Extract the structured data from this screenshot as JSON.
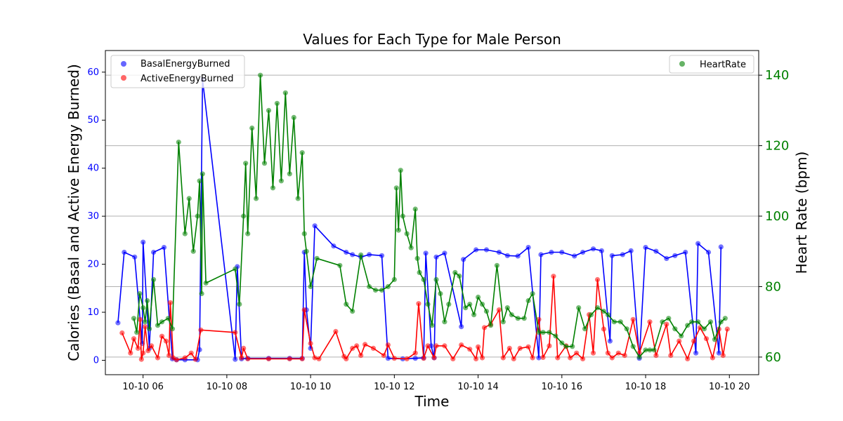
{
  "chart_data": {
    "type": "line",
    "title": "Values for Each Type for Male Person",
    "xlabel": "Time",
    "ylabel_left": "Calories (Basal and Active Energy Burned)",
    "ylabel_right": "Heart Rate (bpm)",
    "xlim": [
      5.1,
      20.7
    ],
    "ylim_left": [
      -3,
      64.5
    ],
    "ylim_right": [
      55,
      147
    ],
    "x_ticks": [
      {
        "label": "10-10 06",
        "hour": 6
      },
      {
        "label": "10-10 08",
        "hour": 8
      },
      {
        "label": "10-10 10",
        "hour": 10
      },
      {
        "label": "10-10 12",
        "hour": 12
      },
      {
        "label": "10-10 14",
        "hour": 14
      },
      {
        "label": "10-10 16",
        "hour": 16
      },
      {
        "label": "10-10 18",
        "hour": 18
      },
      {
        "label": "10-10 20",
        "hour": 20
      }
    ],
    "y_ticks_left": [
      "0",
      "10",
      "20",
      "30",
      "40",
      "50",
      "60"
    ],
    "y_ticks_right": [
      "60",
      "80",
      "100",
      "120",
      "140"
    ],
    "grid": "right-axis horizontal lines",
    "legends": {
      "left": {
        "position": "upper-left",
        "items": [
          "BasalEnergyBurned",
          "ActiveEnergyBurned"
        ]
      },
      "right": {
        "position": "upper-right",
        "items": [
          "HeartRate"
        ]
      }
    },
    "series": [
      {
        "name": "BasalEnergyBurned",
        "axis": "left",
        "color": "#0000ff",
        "points": [
          [
            5.4,
            7.8
          ],
          [
            5.55,
            22.5
          ],
          [
            5.8,
            21.5
          ],
          [
            5.98,
            3.5
          ],
          [
            6.0,
            24.6
          ],
          [
            6.15,
            2.5
          ],
          [
            6.25,
            22.5
          ],
          [
            6.5,
            23.5
          ],
          [
            6.7,
            0.3
          ],
          [
            6.8,
            0.1
          ],
          [
            7.0,
            0.1
          ],
          [
            7.3,
            0.1
          ],
          [
            7.35,
            2.2
          ],
          [
            7.42,
            58.5
          ],
          [
            8.2,
            0.2
          ],
          [
            8.25,
            19.5
          ],
          [
            8.35,
            0.3
          ],
          [
            8.5,
            0.4
          ],
          [
            9.0,
            0.4
          ],
          [
            9.5,
            0.4
          ],
          [
            9.8,
            0.4
          ],
          [
            9.85,
            22.5
          ],
          [
            9.9,
            10.5
          ],
          [
            10.0,
            2.5
          ],
          [
            10.1,
            28.0
          ],
          [
            10.55,
            23.8
          ],
          [
            10.85,
            22.5
          ],
          [
            11.0,
            22.0
          ],
          [
            11.2,
            21.5
          ],
          [
            11.4,
            22.0
          ],
          [
            11.7,
            21.8
          ],
          [
            11.85,
            0.4
          ],
          [
            12.2,
            0.3
          ],
          [
            12.5,
            0.4
          ],
          [
            12.7,
            0.5
          ],
          [
            12.75,
            22.3
          ],
          [
            12.88,
            3.0
          ],
          [
            12.95,
            0.5
          ],
          [
            13.0,
            21.5
          ],
          [
            13.2,
            22.3
          ],
          [
            13.6,
            7.0
          ],
          [
            13.65,
            21.0
          ],
          [
            13.95,
            23.0
          ],
          [
            14.2,
            23.0
          ],
          [
            14.5,
            22.5
          ],
          [
            14.7,
            21.8
          ],
          [
            14.95,
            21.7
          ],
          [
            15.2,
            23.5
          ],
          [
            15.45,
            0.5
          ],
          [
            15.5,
            22.0
          ],
          [
            15.75,
            22.5
          ],
          [
            16.0,
            22.5
          ],
          [
            16.3,
            21.7
          ],
          [
            16.5,
            22.5
          ],
          [
            16.75,
            23.2
          ],
          [
            16.95,
            22.8
          ],
          [
            17.15,
            4.0
          ],
          [
            17.2,
            21.8
          ],
          [
            17.45,
            22.0
          ],
          [
            17.65,
            22.8
          ],
          [
            17.85,
            0.4
          ],
          [
            18.0,
            23.5
          ],
          [
            18.25,
            22.7
          ],
          [
            18.5,
            21.2
          ],
          [
            18.7,
            21.8
          ],
          [
            18.95,
            22.5
          ],
          [
            19.2,
            1.5
          ],
          [
            19.25,
            24.3
          ],
          [
            19.5,
            22.5
          ],
          [
            19.75,
            1.5
          ],
          [
            19.8,
            23.6
          ]
        ]
      },
      {
        "name": "ActiveEnergyBurned",
        "axis": "left",
        "color": "#ff0000",
        "points": [
          [
            5.5,
            5.7
          ],
          [
            5.7,
            1.5
          ],
          [
            5.78,
            4.5
          ],
          [
            5.88,
            2.5
          ],
          [
            5.93,
            8.5
          ],
          [
            5.96,
            0.2
          ],
          [
            6.0,
            1.5
          ],
          [
            6.05,
            7.0
          ],
          [
            6.12,
            2.0
          ],
          [
            6.2,
            3.0
          ],
          [
            6.35,
            0.5
          ],
          [
            6.45,
            5.0
          ],
          [
            6.55,
            4.0
          ],
          [
            6.62,
            1.0
          ],
          [
            6.65,
            12.0
          ],
          [
            6.72,
            0.5
          ],
          [
            6.8,
            0.1
          ],
          [
            7.0,
            0.5
          ],
          [
            7.15,
            1.5
          ],
          [
            7.25,
            0.2
          ],
          [
            7.38,
            6.3
          ],
          [
            8.2,
            5.8
          ],
          [
            8.35,
            0.5
          ],
          [
            8.4,
            2.5
          ],
          [
            8.5,
            0.3
          ],
          [
            9.0,
            0.3
          ],
          [
            9.5,
            0.3
          ],
          [
            9.8,
            0.3
          ],
          [
            9.85,
            10.5
          ],
          [
            10.0,
            3.5
          ],
          [
            10.1,
            0.5
          ],
          [
            10.2,
            0.3
          ],
          [
            10.6,
            6.0
          ],
          [
            10.8,
            0.8
          ],
          [
            10.85,
            0.3
          ],
          [
            11.0,
            2.5
          ],
          [
            11.1,
            3.0
          ],
          [
            11.2,
            1.0
          ],
          [
            11.3,
            3.3
          ],
          [
            11.5,
            2.5
          ],
          [
            11.75,
            1.0
          ],
          [
            11.85,
            3.2
          ],
          [
            12.0,
            0.4
          ],
          [
            12.3,
            0.3
          ],
          [
            12.5,
            1.5
          ],
          [
            12.58,
            11.8
          ],
          [
            12.7,
            0.4
          ],
          [
            12.8,
            3.0
          ],
          [
            12.95,
            0.5
          ],
          [
            13.0,
            3.0
          ],
          [
            13.2,
            3.0
          ],
          [
            13.4,
            0.3
          ],
          [
            13.6,
            3.2
          ],
          [
            13.8,
            2.3
          ],
          [
            13.95,
            0.3
          ],
          [
            14.0,
            2.8
          ],
          [
            14.1,
            0.5
          ],
          [
            14.15,
            6.8
          ],
          [
            14.3,
            7.5
          ],
          [
            14.5,
            10.5
          ],
          [
            14.6,
            0.5
          ],
          [
            14.75,
            2.5
          ],
          [
            14.85,
            0.3
          ],
          [
            15.0,
            2.5
          ],
          [
            15.2,
            2.8
          ],
          [
            15.3,
            0.5
          ],
          [
            15.45,
            8.5
          ],
          [
            15.55,
            0.6
          ],
          [
            15.7,
            3.0
          ],
          [
            15.8,
            17.5
          ],
          [
            15.9,
            0.5
          ],
          [
            16.1,
            3.0
          ],
          [
            16.2,
            0.5
          ],
          [
            16.35,
            1.5
          ],
          [
            16.5,
            0.3
          ],
          [
            16.65,
            9.5
          ],
          [
            16.75,
            1.5
          ],
          [
            16.85,
            16.8
          ],
          [
            17.0,
            6.5
          ],
          [
            17.1,
            1.5
          ],
          [
            17.2,
            0.5
          ],
          [
            17.35,
            1.5
          ],
          [
            17.5,
            1.0
          ],
          [
            17.7,
            8.5
          ],
          [
            17.85,
            1.5
          ],
          [
            18.1,
            8.0
          ],
          [
            18.25,
            1.0
          ],
          [
            18.5,
            7.5
          ],
          [
            18.6,
            1.0
          ],
          [
            18.8,
            4.0
          ],
          [
            19.0,
            0.3
          ],
          [
            19.15,
            4.0
          ],
          [
            19.3,
            6.8
          ],
          [
            19.45,
            4.5
          ],
          [
            19.6,
            0.5
          ],
          [
            19.75,
            6.5
          ],
          [
            19.85,
            1.0
          ],
          [
            19.95,
            6.5
          ]
        ]
      },
      {
        "name": "HeartRate",
        "axis": "right",
        "color": "#008000",
        "points": [
          [
            5.78,
            71
          ],
          [
            5.85,
            67
          ],
          [
            5.92,
            78
          ],
          [
            6.0,
            74
          ],
          [
            6.05,
            70
          ],
          [
            6.1,
            76
          ],
          [
            6.15,
            68
          ],
          [
            6.25,
            82
          ],
          [
            6.35,
            69
          ],
          [
            6.45,
            70
          ],
          [
            6.6,
            71
          ],
          [
            6.7,
            68
          ],
          [
            6.85,
            121
          ],
          [
            7.0,
            95
          ],
          [
            7.1,
            105
          ],
          [
            7.2,
            90
          ],
          [
            7.3,
            100
          ],
          [
            7.35,
            110
          ],
          [
            7.4,
            78
          ],
          [
            7.42,
            112
          ],
          [
            7.5,
            81
          ],
          [
            8.2,
            85
          ],
          [
            8.3,
            75
          ],
          [
            8.4,
            100
          ],
          [
            8.45,
            115
          ],
          [
            8.5,
            95
          ],
          [
            8.6,
            125
          ],
          [
            8.7,
            105
          ],
          [
            8.8,
            140
          ],
          [
            8.9,
            115
          ],
          [
            9.0,
            130
          ],
          [
            9.1,
            108
          ],
          [
            9.2,
            132
          ],
          [
            9.3,
            110
          ],
          [
            9.4,
            135
          ],
          [
            9.5,
            112
          ],
          [
            9.6,
            128
          ],
          [
            9.7,
            105
          ],
          [
            9.8,
            118
          ],
          [
            9.85,
            95
          ],
          [
            9.9,
            90
          ],
          [
            10.0,
            80
          ],
          [
            10.15,
            88
          ],
          [
            10.7,
            86
          ],
          [
            10.85,
            75
          ],
          [
            11.0,
            73
          ],
          [
            11.2,
            89
          ],
          [
            11.4,
            80
          ],
          [
            11.55,
            79
          ],
          [
            11.7,
            79
          ],
          [
            11.85,
            80
          ],
          [
            12.0,
            82
          ],
          [
            12.05,
            108
          ],
          [
            12.1,
            96
          ],
          [
            12.15,
            113
          ],
          [
            12.2,
            100
          ],
          [
            12.3,
            95
          ],
          [
            12.4,
            91
          ],
          [
            12.5,
            102
          ],
          [
            12.55,
            88
          ],
          [
            12.6,
            84
          ],
          [
            12.7,
            82
          ],
          [
            12.8,
            75
          ],
          [
            12.9,
            69
          ],
          [
            13.0,
            82
          ],
          [
            13.1,
            78
          ],
          [
            13.2,
            70
          ],
          [
            13.3,
            75
          ],
          [
            13.45,
            84
          ],
          [
            13.55,
            83
          ],
          [
            13.7,
            74
          ],
          [
            13.8,
            75
          ],
          [
            13.9,
            72
          ],
          [
            14.0,
            77
          ],
          [
            14.1,
            75
          ],
          [
            14.2,
            73
          ],
          [
            14.3,
            69
          ],
          [
            14.45,
            86
          ],
          [
            14.6,
            70
          ],
          [
            14.7,
            74
          ],
          [
            14.8,
            72
          ],
          [
            14.95,
            71
          ],
          [
            15.1,
            71
          ],
          [
            15.2,
            76
          ],
          [
            15.3,
            78
          ],
          [
            15.45,
            67
          ],
          [
            15.55,
            67
          ],
          [
            15.7,
            67
          ],
          [
            15.85,
            66
          ],
          [
            16.0,
            64
          ],
          [
            16.1,
            63
          ],
          [
            16.25,
            63
          ],
          [
            16.4,
            74
          ],
          [
            16.55,
            68
          ],
          [
            16.7,
            72
          ],
          [
            16.85,
            74
          ],
          [
            17.0,
            73
          ],
          [
            17.1,
            72
          ],
          [
            17.25,
            70
          ],
          [
            17.4,
            70
          ],
          [
            17.55,
            68
          ],
          [
            17.7,
            63
          ],
          [
            17.85,
            60
          ],
          [
            18.0,
            62
          ],
          [
            18.1,
            62
          ],
          [
            18.2,
            62
          ],
          [
            18.4,
            70
          ],
          [
            18.55,
            71
          ],
          [
            18.7,
            68
          ],
          [
            18.85,
            66
          ],
          [
            19.0,
            69
          ],
          [
            19.1,
            70
          ],
          [
            19.25,
            70
          ],
          [
            19.4,
            68
          ],
          [
            19.55,
            70
          ],
          [
            19.65,
            65
          ],
          [
            19.8,
            70
          ],
          [
            19.9,
            71
          ]
        ]
      }
    ]
  }
}
